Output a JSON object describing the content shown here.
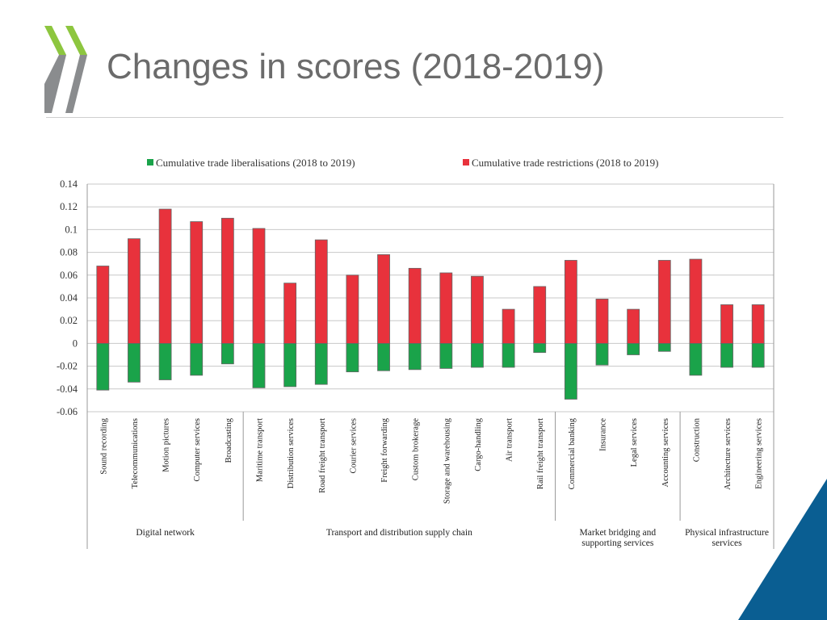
{
  "slide": {
    "title": "Changes in scores (2018-2019)"
  },
  "colors": {
    "liberalisation": "#1aa34a",
    "restriction": "#e8323c",
    "logo_green": "#8dc63f",
    "logo_grey": "#8a8c8e",
    "corner_blue": "#0a5e92"
  },
  "chart_data": {
    "type": "bar",
    "title": "",
    "ylim": [
      -0.06,
      0.14
    ],
    "yticks": [
      -0.06,
      -0.04,
      -0.02,
      0,
      0.02,
      0.04,
      0.06,
      0.08,
      0.1,
      0.12,
      0.14
    ],
    "ytick_labels": [
      "-0.06",
      "-0.04",
      "-0.02",
      "0",
      "0.02",
      "0.04",
      "0.06",
      "0.08",
      "0.1",
      "0.12",
      "0.14"
    ],
    "legend_position": "top",
    "categories": [
      "Sound recording",
      "Telecommunications",
      "Motion pictures",
      "Computer services",
      "Broadcasting",
      "Maritime transport",
      "Distribution services",
      "Road freight transport",
      "Courier services",
      "Freight forwarding",
      "Custom brokerage",
      "Storage and warehousing",
      "Cargo-handling",
      "Air transport",
      "Rail freight transport",
      "Commercial banking",
      "Insurance",
      "Legal services",
      "Accounting services",
      "Construction",
      "Architecture services",
      "Engineering services"
    ],
    "series": [
      {
        "name": "Cumulative trade liberalisations (2018 to 2019)",
        "values": [
          -0.041,
          -0.034,
          -0.032,
          -0.028,
          -0.018,
          -0.039,
          -0.038,
          -0.036,
          -0.025,
          -0.024,
          -0.023,
          -0.022,
          -0.021,
          -0.021,
          -0.008,
          -0.049,
          -0.019,
          -0.01,
          -0.007,
          -0.028,
          -0.021,
          -0.021
        ]
      },
      {
        "name": "Cumulative trade restrictions (2018 to 2019)",
        "values": [
          0.068,
          0.092,
          0.118,
          0.107,
          0.11,
          0.101,
          0.053,
          0.091,
          0.06,
          0.078,
          0.066,
          0.062,
          0.059,
          0.03,
          0.05,
          0.073,
          0.039,
          0.03,
          0.073,
          0.074,
          0.034,
          0.034
        ]
      }
    ],
    "groups": [
      {
        "lines": [
          "Digital network"
        ],
        "start": 0,
        "end": 4
      },
      {
        "lines": [
          "Transport and distribution supply chain"
        ],
        "start": 5,
        "end": 14
      },
      {
        "lines": [
          "Market bridging and",
          "supporting services"
        ],
        "start": 15,
        "end": 18
      },
      {
        "lines": [
          "Physical infrastructure",
          "services"
        ],
        "start": 19,
        "end": 21
      }
    ]
  }
}
